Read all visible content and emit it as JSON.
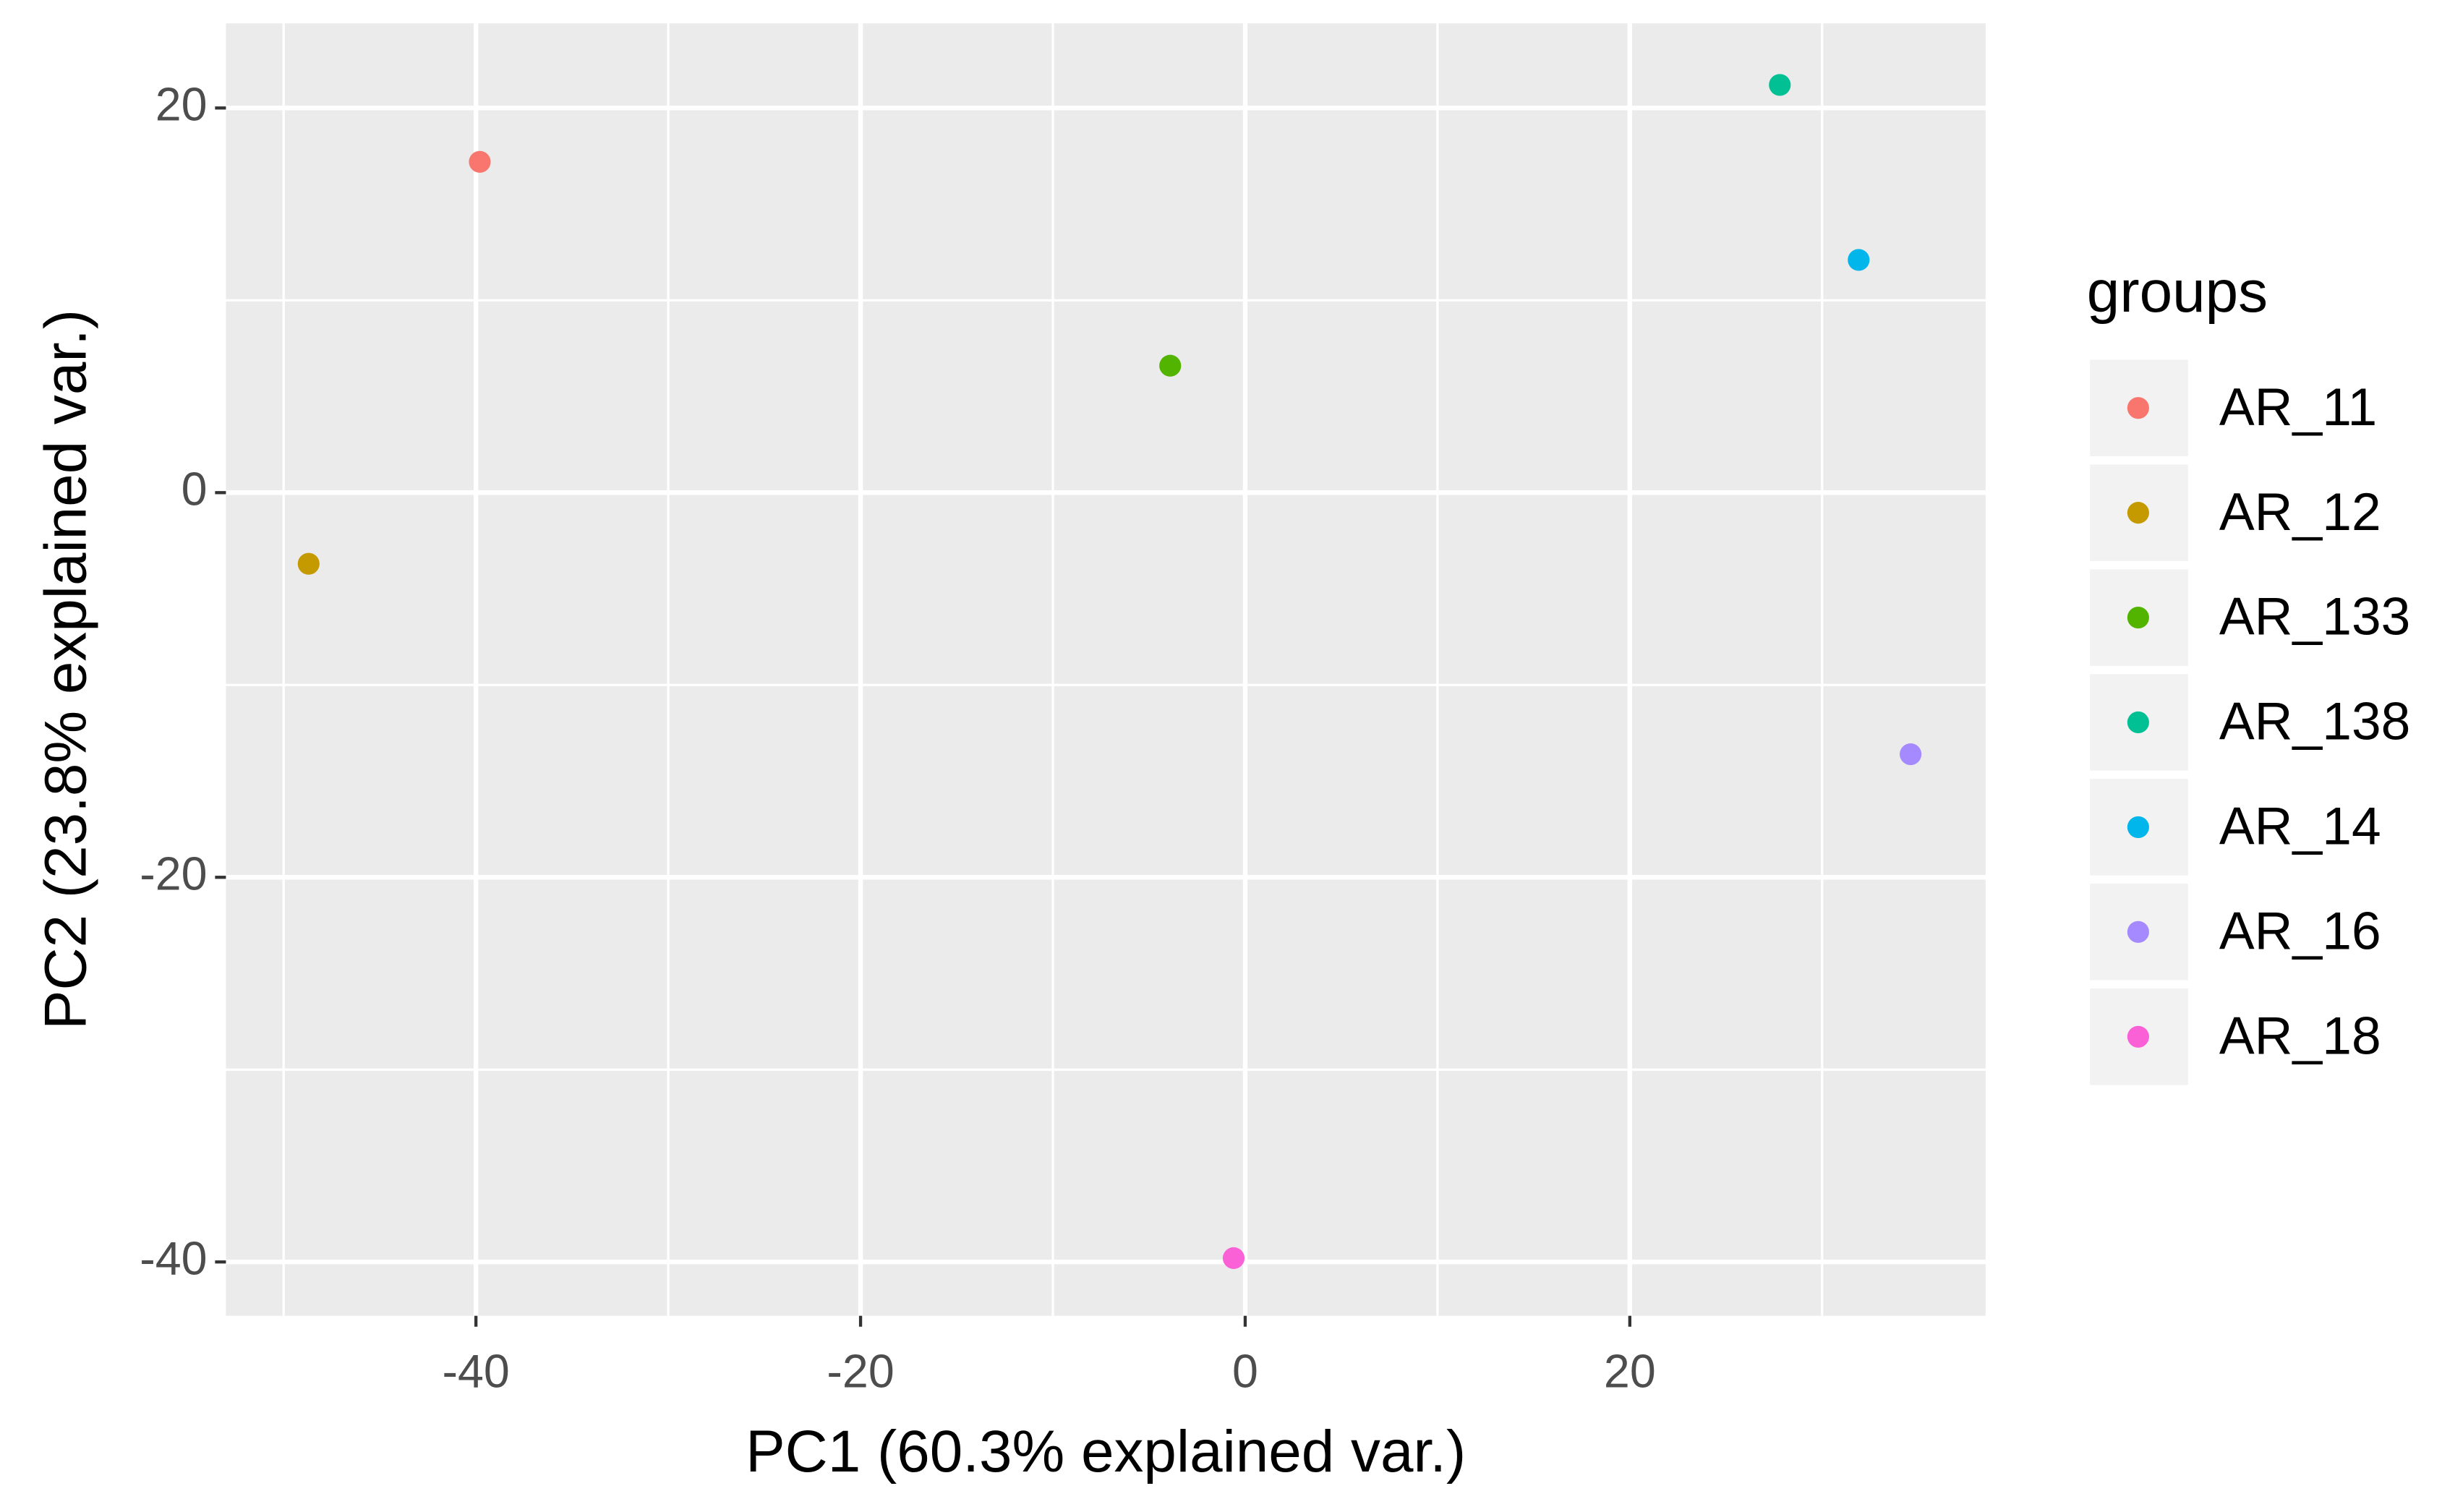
{
  "chart_data": {
    "type": "scatter",
    "xlabel": "PC1 (60.3% explained var.)",
    "ylabel": "PC2 (23.8% explained var.)",
    "legend_title": "groups",
    "legend": "right",
    "grid": true,
    "xlim": [
      -53,
      38.5
    ],
    "ylim": [
      -42.8,
      24.4
    ],
    "xticks": [
      -40,
      -20,
      0,
      20
    ],
    "yticks": [
      -40,
      -20,
      0,
      20
    ],
    "minor_xticks": [
      -50,
      -30,
      -10,
      10,
      30
    ],
    "minor_yticks": [
      -30,
      -10,
      10
    ],
    "series": [
      {
        "name": "AR_11",
        "color": "#F8766D",
        "x": [
          -39.8
        ],
        "values": [
          17.2
        ]
      },
      {
        "name": "AR_12",
        "color": "#C49A00",
        "x": [
          -48.7
        ],
        "values": [
          -3.7
        ]
      },
      {
        "name": "AR_133",
        "color": "#53B400",
        "x": [
          -3.9
        ],
        "values": [
          6.6
        ]
      },
      {
        "name": "AR_138",
        "color": "#00C094",
        "x": [
          27.8
        ],
        "values": [
          21.2
        ]
      },
      {
        "name": "AR_14",
        "color": "#00B6EB",
        "x": [
          31.9
        ],
        "values": [
          12.1
        ]
      },
      {
        "name": "AR_16",
        "color": "#A58AFF",
        "x": [
          34.6
        ],
        "values": [
          -13.6
        ]
      },
      {
        "name": "AR_18",
        "color": "#FB61D7",
        "x": [
          -0.6
        ],
        "values": [
          -39.8
        ]
      }
    ]
  }
}
